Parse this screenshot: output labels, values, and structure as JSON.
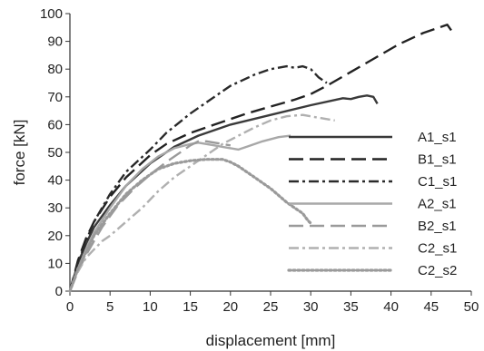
{
  "chart_data": {
    "type": "line",
    "xlabel": "displacement [mm]",
    "ylabel": "force [kN]",
    "xlim": [
      0,
      50
    ],
    "ylim": [
      0,
      100
    ],
    "xticks": [
      0,
      5,
      10,
      15,
      20,
      25,
      30,
      35,
      40,
      45,
      50
    ],
    "yticks": [
      0,
      10,
      20,
      30,
      40,
      50,
      60,
      70,
      80,
      90,
      100
    ],
    "grid": false,
    "legend_position": "right",
    "series": [
      {
        "name": "A1_s1",
        "color": "#3a3a3a",
        "style": "solid",
        "x": [
          0,
          1,
          2,
          3,
          5,
          7,
          10,
          13,
          16,
          20,
          25,
          30,
          34,
          35,
          36,
          37,
          37.8,
          38.3
        ],
        "y": [
          0,
          10,
          17,
          23,
          31,
          38,
          46,
          52,
          56,
          60,
          63.5,
          67,
          69.5,
          69.2,
          70,
          70.5,
          70,
          67.5
        ]
      },
      {
        "name": "B1_s1",
        "color": "#222222",
        "style": "longdash",
        "x": [
          0,
          1,
          2,
          3,
          5,
          7,
          10,
          12,
          15,
          18,
          20,
          22,
          25,
          28,
          30,
          32,
          35,
          38,
          41,
          44,
          46,
          47,
          47.5
        ],
        "y": [
          0,
          11,
          19,
          25,
          34,
          41,
          49,
          53,
          57,
          60,
          62,
          64,
          66.5,
          69,
          71,
          74,
          79,
          84,
          89,
          93,
          95,
          96,
          94
        ]
      },
      {
        "name": "C1_s1",
        "color": "#2a2a2a",
        "style": "dashdot",
        "x": [
          0,
          1,
          2,
          3,
          5,
          7,
          10,
          12,
          15,
          18,
          20,
          23,
          25,
          27,
          28,
          29,
          30,
          31,
          32
        ],
        "y": [
          0,
          10,
          18,
          25,
          35,
          43,
          51,
          57,
          64,
          70,
          74,
          78,
          80,
          81,
          80.5,
          81,
          80,
          77,
          75
        ]
      },
      {
        "name": "A2_s1",
        "color": "#a8a8a8",
        "style": "solid",
        "x": [
          0,
          1,
          2,
          3,
          5,
          7,
          9,
          11,
          13,
          15,
          16,
          17,
          18,
          19,
          20,
          21,
          22,
          24,
          26,
          27.5
        ],
        "y": [
          0,
          8,
          15,
          21,
          30,
          38,
          44,
          48.5,
          51.5,
          53,
          53.5,
          53,
          52.5,
          52,
          51.5,
          51,
          52,
          54,
          55.5,
          56
        ]
      },
      {
        "name": "B2_s1",
        "color": "#9a9a9a",
        "style": "longdash",
        "x": [
          0,
          1,
          2,
          3,
          4,
          6,
          8,
          10,
          12,
          14,
          15,
          16,
          17,
          18,
          19,
          20
        ],
        "y": [
          0,
          7,
          13,
          18,
          23,
          31,
          37,
          42,
          46.5,
          50.5,
          52.5,
          54,
          54,
          53.5,
          53,
          52.5
        ]
      },
      {
        "name": "C2_s1",
        "color": "#b0b0b0",
        "style": "dashdot",
        "x": [
          0,
          1,
          2,
          3,
          4,
          5,
          7,
          9,
          11,
          13,
          15,
          17,
          19,
          21,
          23,
          25,
          27,
          29,
          31,
          33
        ],
        "y": [
          0,
          7,
          12,
          15,
          18,
          20,
          25,
          30,
          36,
          41,
          45,
          49,
          53,
          56,
          59,
          61.5,
          63,
          63.5,
          62.5,
          61.5
        ]
      },
      {
        "name": "C2_s2",
        "color": "#9a9a9a",
        "style": "dotted",
        "x": [
          0,
          1,
          2,
          3,
          5,
          7,
          9,
          11,
          13,
          15,
          17,
          19,
          20,
          21,
          22,
          23,
          24,
          25,
          26,
          27,
          28,
          29,
          29.5,
          29.8,
          30
        ],
        "y": [
          0,
          8,
          14,
          20,
          28,
          35,
          40,
          44,
          46,
          47,
          47.5,
          47.5,
          46.5,
          45,
          43,
          41,
          39,
          37,
          34.5,
          32,
          30,
          28,
          26,
          25,
          24.5
        ]
      }
    ]
  }
}
